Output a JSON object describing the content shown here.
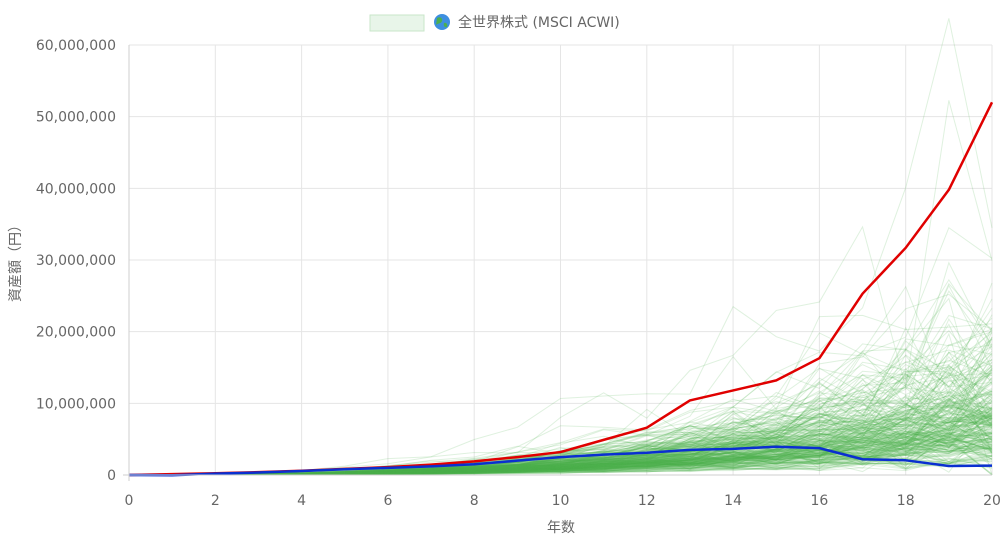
{
  "chart_data": {
    "type": "line",
    "legend": {
      "position": "top-center",
      "icon": "globe-icon",
      "label": "全世界株式 (MSCI ACWI)",
      "swatch_fill": "#e8f5e9",
      "swatch_stroke": "#c8e6c9"
    },
    "xlabel": "年数",
    "ylabel": "資産額（円）",
    "xlim": [
      0,
      20
    ],
    "ylim": [
      0,
      60000000
    ],
    "x_ticks": [
      0,
      2,
      4,
      6,
      8,
      10,
      12,
      14,
      16,
      18,
      20
    ],
    "y_ticks": [
      0,
      10000000,
      20000000,
      30000000,
      40000000,
      50000000,
      60000000
    ],
    "x_tick_labels": [
      "0",
      "2",
      "4",
      "6",
      "8",
      "10",
      "12",
      "14",
      "16",
      "18",
      "20"
    ],
    "y_tick_labels": [
      "0",
      "10,000,000",
      "20,000,000",
      "30,000,000",
      "40,000,000",
      "50,000,000",
      "60,000,000"
    ],
    "grid": true,
    "x": [
      0,
      1,
      2,
      3,
      4,
      5,
      6,
      7,
      8,
      9,
      10,
      11,
      12,
      13,
      14,
      15,
      16,
      17,
      18,
      19,
      20
    ],
    "series": [
      {
        "color": "#e00000",
        "values": [
          0,
          120000,
          250000,
          400000,
          600000,
          850000,
          1100000,
          1450000,
          1900000,
          2500000,
          3200000,
          4900000,
          6600000,
          10400000,
          11800000,
          13200000,
          16300000,
          25300000,
          31700000,
          39800000,
          52000000
        ]
      },
      {
        "color": "#0a2fd0",
        "values": [
          0,
          -30000,
          200000,
          350000,
          550000,
          800000,
          1000000,
          1200000,
          1500000,
          2000000,
          2500000,
          2850000,
          3100000,
          3500000,
          3650000,
          3950000,
          3750000,
          2200000,
          2050000,
          1250000,
          1300000
        ]
      }
    ],
    "simulation": {
      "color": "#4caf50",
      "description_count": 300,
      "median_final": 8000000
    }
  }
}
